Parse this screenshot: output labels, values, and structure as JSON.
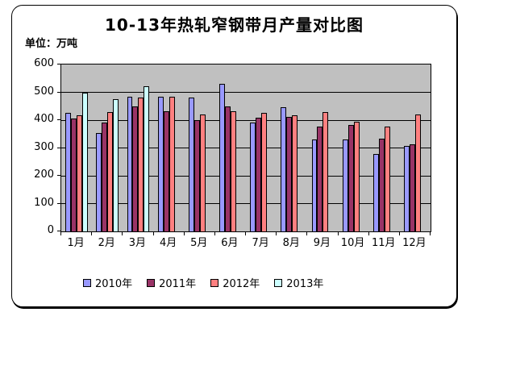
{
  "title": "10-13年热轧窄钢带月产量对比图",
  "unit_label": "单位：万吨",
  "colors": {
    "plot_bg": "#C0C0C0",
    "card_bg": "#FFFFFF",
    "border": "#000000"
  },
  "chart_data": {
    "type": "bar",
    "title": "10-13年热轧窄钢带月产量对比图",
    "ylabel": "单位：万吨",
    "xlabel": "",
    "categories": [
      "1月",
      "2月",
      "3月",
      "4月",
      "5月",
      "6月",
      "7月",
      "8月",
      "9月",
      "10月",
      "11月",
      "12月"
    ],
    "series": [
      {
        "name": "2010年",
        "color": "#9999FF",
        "values": [
          425,
          355,
          485,
          485,
          480,
          530,
          390,
          445,
          330,
          330,
          278,
          308
        ]
      },
      {
        "name": "2011年",
        "color": "#993366",
        "values": [
          405,
          392,
          450,
          432,
          400,
          448,
          410,
          413,
          378,
          382,
          332,
          312
        ]
      },
      {
        "name": "2012年",
        "color": "#FF8080",
        "values": [
          417,
          430,
          480,
          484,
          421,
          433,
          425,
          416,
          429,
          393,
          378,
          419
        ]
      },
      {
        "name": "2013年",
        "color": "#CCFFFF",
        "values": [
          500,
          476,
          521,
          null,
          null,
          null,
          null,
          null,
          null,
          null,
          null,
          null
        ]
      }
    ],
    "ylim": [
      0,
      600
    ],
    "yticks": [
      0,
      100,
      200,
      300,
      400,
      500,
      600
    ],
    "grid": true,
    "legend_position": "bottom"
  }
}
